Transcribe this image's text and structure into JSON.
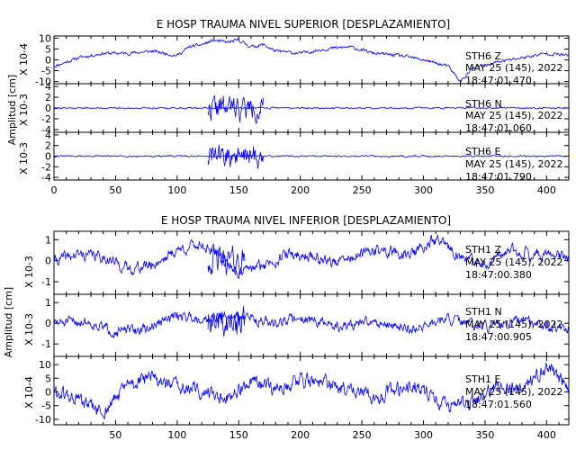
{
  "chart_data": [
    {
      "type": "line",
      "title": "E HOSP TRAUMA NIVEL SUPERIOR [DESPLAZAMIENTO]",
      "ylabel": "Amplitud [cm]",
      "x_ticks": [
        0,
        50,
        100,
        150,
        200,
        250,
        300,
        350,
        400
      ],
      "xlim": [
        0,
        418
      ],
      "color": "#0000ff",
      "panels": [
        {
          "name": "STH6 Z",
          "station": "STH6",
          "component": "Z",
          "date": "MAY 25 (145), 2022",
          "time": "18:47:01.470",
          "scale": "X 10-4",
          "ylim": [
            -11,
            11
          ],
          "y_ticks": [
            10,
            5,
            0,
            -5,
            -10
          ],
          "y_tick_labels": [
            "10",
            "5",
            "0",
            "-5",
            "-10"
          ],
          "segments": [
            {
              "x": [
                0,
                20,
                40,
                60,
                80,
                100,
                110,
                120,
                130,
                140,
                150,
                160,
                170,
                180,
                200,
                220,
                240,
                260,
                280,
                300,
                320,
                330,
                340,
                360,
                380,
                400,
                418
              ],
              "y": [
                -3,
                1,
                3,
                3,
                4,
                2,
                6,
                7,
                9,
                8,
                9,
                6,
                7,
                4,
                3,
                5,
                6,
                3,
                2,
                0,
                -3,
                -10,
                -4,
                -1,
                1,
                3,
                2
              ],
              "noise": 0.6,
              "seed": 11
            }
          ]
        },
        {
          "name": "STH6 N",
          "station": "STH6",
          "component": "N",
          "date": "MAY 25 (145), 2022",
          "time": "18:47:01.060",
          "scale": "X 10-3",
          "ylim": [
            -4.5,
            4.5
          ],
          "y_ticks": [
            4,
            2,
            0,
            -2,
            -4
          ],
          "y_tick_labels": [
            "4",
            "2",
            "0",
            "-2",
            "-4"
          ],
          "segments": [
            {
              "x": [
                0,
                125,
                418
              ],
              "y": [
                0,
                0,
                0
              ],
              "noise": 0.12,
              "seed": 21
            },
            {
              "x": [
                125,
                130,
                135,
                140,
                145,
                150,
                160,
                170
              ],
              "y": [
                0,
                0,
                0,
                0,
                0,
                0,
                0,
                0
              ],
              "noise": 1.8,
              "seed": 22
            }
          ]
        },
        {
          "name": "STH6 E",
          "station": "STH6",
          "component": "E",
          "date": "MAY 25 (145), 2022",
          "time": "18:47:01.790",
          "scale": "X 10-3",
          "ylim": [
            -4.5,
            4.5
          ],
          "y_ticks": [
            4,
            2,
            0,
            -2,
            -4
          ],
          "y_tick_labels": [
            "4",
            "2",
            "0",
            "-2",
            "-4"
          ],
          "segments": [
            {
              "x": [
                0,
                125,
                418
              ],
              "y": [
                0,
                0,
                0
              ],
              "noise": 0.12,
              "seed": 31
            },
            {
              "x": [
                125,
                130,
                135,
                140,
                145,
                150,
                160,
                170
              ],
              "y": [
                0,
                0,
                0,
                0,
                0,
                0,
                0,
                0
              ],
              "noise": 1.8,
              "seed": 32
            }
          ]
        }
      ]
    },
    {
      "type": "line",
      "title": "E HOSP TRAUMA NIVEL INFERIOR [DESPLAZAMIENTO]",
      "ylabel": "Amplitud [cm]",
      "x_ticks": [
        50,
        100,
        150,
        200,
        250,
        300,
        350,
        400
      ],
      "xlim": [
        0,
        418
      ],
      "color": "#0000ff",
      "panels": [
        {
          "name": "STH1 Z",
          "station": "STH1",
          "component": "Z",
          "date": "MAY 25 (145), 2022",
          "time": "18:47:00.380",
          "scale": "X 10-3",
          "ylim": [
            -1.6,
            1.4
          ],
          "y_ticks": [
            1,
            0,
            -1
          ],
          "y_tick_labels": [
            "1",
            "0",
            "-1"
          ],
          "segments": [
            {
              "x": [
                0,
                20,
                40,
                60,
                80,
                100,
                120,
                135,
                150,
                170,
                190,
                210,
                230,
                260,
                290,
                310,
                330,
                350,
                370,
                395,
                418
              ],
              "y": [
                0,
                0.3,
                0.2,
                -0.4,
                -0.2,
                0.5,
                0.8,
                0.2,
                -0.6,
                -0.2,
                0.3,
                0.2,
                -0.1,
                0.5,
                0.3,
                1.0,
                0.2,
                -0.3,
                0.5,
                0.3,
                0.2
              ],
              "noise": 0.22,
              "seed": 41
            },
            {
              "x": [
                125,
                135,
                145,
                155
              ],
              "y": [
                0,
                0,
                0,
                0
              ],
              "noise": 0.5,
              "seed": 42
            }
          ]
        },
        {
          "name": "STH1 N",
          "station": "STH1",
          "component": "N",
          "date": "MAY 25 (145), 2022",
          "time": "18:47:00.905",
          "scale": "X 10-3",
          "ylim": [
            -1.6,
            1.4
          ],
          "y_ticks": [
            1,
            0,
            -1
          ],
          "y_tick_labels": [
            "1",
            "0",
            "-1"
          ],
          "segments": [
            {
              "x": [
                0,
                25,
                50,
                75,
                100,
                125,
                150,
                175,
                200,
                230,
                260,
                290,
                320,
                350,
                380,
                418
              ],
              "y": [
                0,
                0.1,
                -0.4,
                -0.3,
                0.4,
                0.2,
                0.4,
                0.0,
                0.3,
                -0.2,
                0.1,
                -0.3,
                0.2,
                -0.2,
                0.1,
                -0.3
              ],
              "noise": 0.2,
              "seed": 51
            },
            {
              "x": [
                125,
                135,
                145,
                155
              ],
              "y": [
                0,
                0,
                0,
                0
              ],
              "noise": 0.6,
              "seed": 52
            }
          ]
        },
        {
          "name": "STH1 E",
          "station": "STH1",
          "component": "E",
          "date": "MAY 25 (145), 2022",
          "time": "18:47:01.560",
          "scale": "X 10-4",
          "ylim": [
            -12,
            13
          ],
          "y_ticks": [
            10,
            5,
            0,
            -5,
            -10
          ],
          "y_tick_labels": [
            "10",
            "5",
            "0",
            "-5",
            "-10"
          ],
          "segments": [
            {
              "x": [
                0,
                20,
                40,
                60,
                80,
                100,
                120,
                140,
                160,
                180,
                200,
                230,
                260,
                290,
                320,
                340,
                360,
                380,
                400,
                418
              ],
              "y": [
                0,
                -3,
                -8,
                3,
                5,
                2,
                0,
                -2,
                3,
                1,
                5,
                2,
                -2,
                3,
                -5,
                -4,
                2,
                1,
                9,
                2
              ],
              "noise": 2.2,
              "seed": 61
            }
          ]
        }
      ]
    }
  ]
}
